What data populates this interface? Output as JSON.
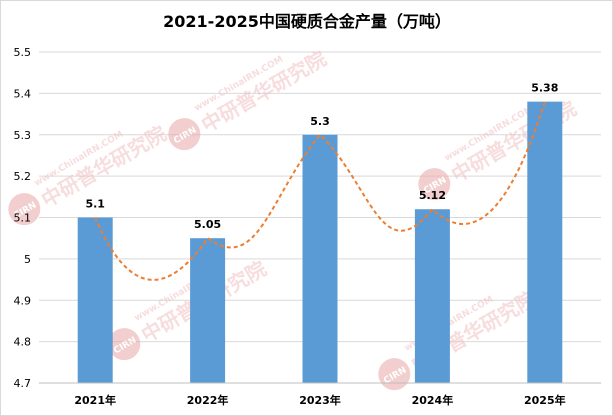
{
  "chart_data": {
    "type": "bar",
    "title": "2021-2025中国硬质合金产量（万吨）",
    "categories": [
      "2021年",
      "2022年",
      "2023年",
      "2024年",
      "2025年"
    ],
    "values": [
      5.1,
      5.05,
      5.3,
      5.12,
      5.38
    ],
    "data_labels": [
      "5.1",
      "5.05",
      "5.3",
      "5.12",
      "5.38"
    ],
    "ylim": [
      4.7,
      5.5
    ],
    "yticks": [
      4.7,
      4.8,
      4.9,
      5.0,
      5.1,
      5.2,
      5.3,
      5.4,
      5.5
    ],
    "ytick_labels": [
      "4.7",
      "4.8",
      "4.9",
      "5",
      "5.1",
      "5.2",
      "5.3",
      "5.4",
      "5.5"
    ],
    "xlabel": "",
    "ylabel": "",
    "grid": true,
    "legend": "none",
    "trendline": "smoothed dashed line through bar tops",
    "colors": {
      "bar": "#5b9bd5",
      "trend": "#ed7d31",
      "grid": "#d9d9d9",
      "text": "#000000"
    }
  },
  "watermark": {
    "text": "中研普华研究院",
    "site": "www.ChinaIRN.COM",
    "badge": "CIRN",
    "colors": {
      "badge": "#e8a7a7",
      "text": "#f1c2c2"
    }
  }
}
